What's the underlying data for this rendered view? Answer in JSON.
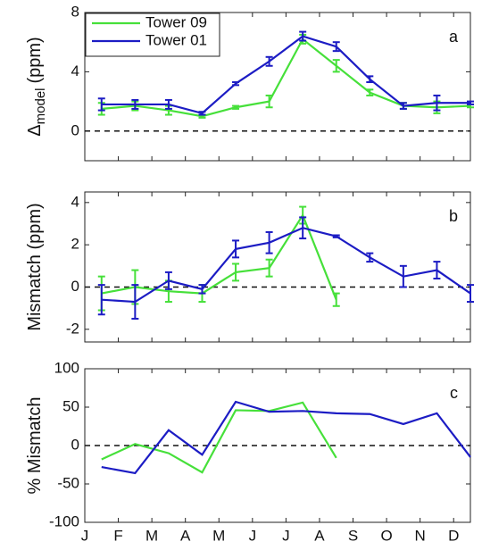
{
  "chart_data": [
    {
      "type": "line",
      "panel_label": "a",
      "ylabel": "Δ",
      "ylabel_sub": "model",
      "ylabel_unit": "(ppm)",
      "x": [
        1.5,
        2.5,
        3.5,
        4.5,
        5.5,
        6.5,
        7.5,
        8.5,
        9.5,
        10.5,
        11.5,
        12.5
      ],
      "xlim": [
        1,
        12.5
      ],
      "xticks": [
        1,
        2,
        3,
        4,
        5,
        6,
        7,
        8,
        9,
        10,
        11,
        12
      ],
      "ylim": [
        -2,
        8
      ],
      "yticks": [
        0,
        4,
        8
      ],
      "refline": 0,
      "legend": "upper left",
      "series": [
        {
          "name": "Tower 09",
          "color": "#46e03a",
          "values": [
            1.5,
            1.7,
            1.4,
            1.0,
            1.6,
            2.0,
            6.2,
            4.4,
            2.6,
            1.7,
            1.6,
            1.7
          ],
          "errors": [
            0.4,
            0.3,
            0.3,
            0.1,
            0.1,
            0.4,
            0.3,
            0.4,
            0.2,
            0.2,
            0.4,
            0.1
          ]
        },
        {
          "name": "Tower 01",
          "color": "#1c1cc4",
          "values": [
            1.8,
            1.8,
            1.8,
            1.2,
            3.2,
            4.7,
            6.4,
            5.7,
            3.5,
            1.7,
            1.9,
            1.9
          ],
          "errors": [
            0.4,
            0.3,
            0.3,
            0.1,
            0.1,
            0.3,
            0.3,
            0.3,
            0.2,
            0.2,
            0.5,
            0.1
          ]
        }
      ]
    },
    {
      "type": "line",
      "panel_label": "b",
      "ylabel": "Mismatch (ppm)",
      "x": [
        1.5,
        2.5,
        3.5,
        4.5,
        5.5,
        6.5,
        7.5,
        8.5,
        9.5,
        10.5,
        11.5,
        12.5
      ],
      "xlim": [
        1,
        12.5
      ],
      "xticks": [
        1,
        2,
        3,
        4,
        5,
        6,
        7,
        8,
        9,
        10,
        11,
        12
      ],
      "ylim": [
        -2.6,
        4.5
      ],
      "yticks": [
        -2,
        0,
        2,
        4
      ],
      "refline": 0,
      "series": [
        {
          "color": "#46e03a",
          "values": [
            -0.3,
            0.0,
            -0.2,
            -0.3,
            0.7,
            0.9,
            3.4,
            -0.6,
            null,
            null,
            null,
            null
          ],
          "errors": [
            0.8,
            0.8,
            0.5,
            0.4,
            0.4,
            0.4,
            0.4,
            0.3,
            null,
            null,
            null,
            null
          ]
        },
        {
          "color": "#1c1cc4",
          "values": [
            -0.6,
            -0.7,
            0.3,
            -0.1,
            1.8,
            2.1,
            2.8,
            2.4,
            1.4,
            0.5,
            0.8,
            -0.3
          ],
          "errors": [
            0.7,
            0.8,
            0.4,
            0.2,
            0.4,
            0.5,
            0.5,
            0.05,
            0.2,
            0.5,
            0.4,
            0.4
          ]
        }
      ]
    },
    {
      "type": "line",
      "panel_label": "c",
      "ylabel": "% Mismatch",
      "x": [
        1.5,
        2.5,
        3.5,
        4.5,
        5.5,
        6.5,
        7.5,
        8.5,
        9.5,
        10.5,
        11.5,
        12.5
      ],
      "xlim": [
        1,
        12.5
      ],
      "xticks": [
        {
          "value": 1,
          "label": "J"
        },
        {
          "value": 2,
          "label": "F"
        },
        {
          "value": 3,
          "label": "M"
        },
        {
          "value": 4,
          "label": "A"
        },
        {
          "value": 5,
          "label": "M"
        },
        {
          "value": 6,
          "label": "J"
        },
        {
          "value": 7,
          "label": "J"
        },
        {
          "value": 8,
          "label": "A"
        },
        {
          "value": 9,
          "label": "S"
        },
        {
          "value": 10,
          "label": "O"
        },
        {
          "value": 11,
          "label": "N"
        },
        {
          "value": 12,
          "label": "D"
        }
      ],
      "ylim": [
        -100,
        100
      ],
      "yticks": [
        -100,
        -50,
        0,
        50,
        100
      ],
      "refline": 0,
      "series": [
        {
          "color": "#46e03a",
          "values": [
            -18,
            2,
            -10,
            -35,
            46,
            45,
            56,
            -16,
            null,
            null,
            null,
            null
          ]
        },
        {
          "color": "#1c1cc4",
          "values": [
            -28,
            -36,
            20,
            -12,
            57,
            44,
            45,
            42,
            41,
            28,
            42,
            -15
          ]
        }
      ]
    }
  ]
}
